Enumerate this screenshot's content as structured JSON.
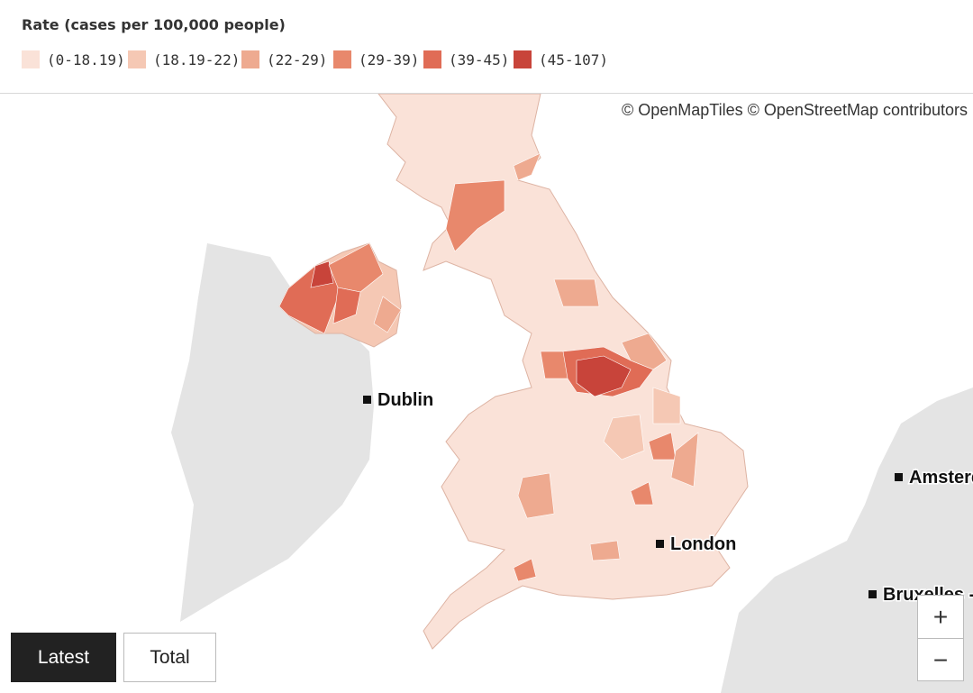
{
  "legend": {
    "title": "Rate (cases per 100,000 people)",
    "items": [
      {
        "label": "(0-18.19)",
        "color": "#fae2d8"
      },
      {
        "label": "(18.19-22)",
        "color": "#f5c8b4"
      },
      {
        "label": "(22-29)",
        "color": "#eeaa90"
      },
      {
        "label": "(29-39)",
        "color": "#e8886c"
      },
      {
        "label": "(39-45)",
        "color": "#e06c56"
      },
      {
        "label": "(45-107)",
        "color": "#c8443a"
      }
    ]
  },
  "attribution": "© OpenMapTiles © OpenStreetMap contributors",
  "places": [
    "Dublin",
    "London",
    "Amsterdam",
    "Bruxelles - Brussel"
  ],
  "buttons": [
    "Latest",
    "Total"
  ],
  "zoom": [
    "+",
    "−"
  ]
}
